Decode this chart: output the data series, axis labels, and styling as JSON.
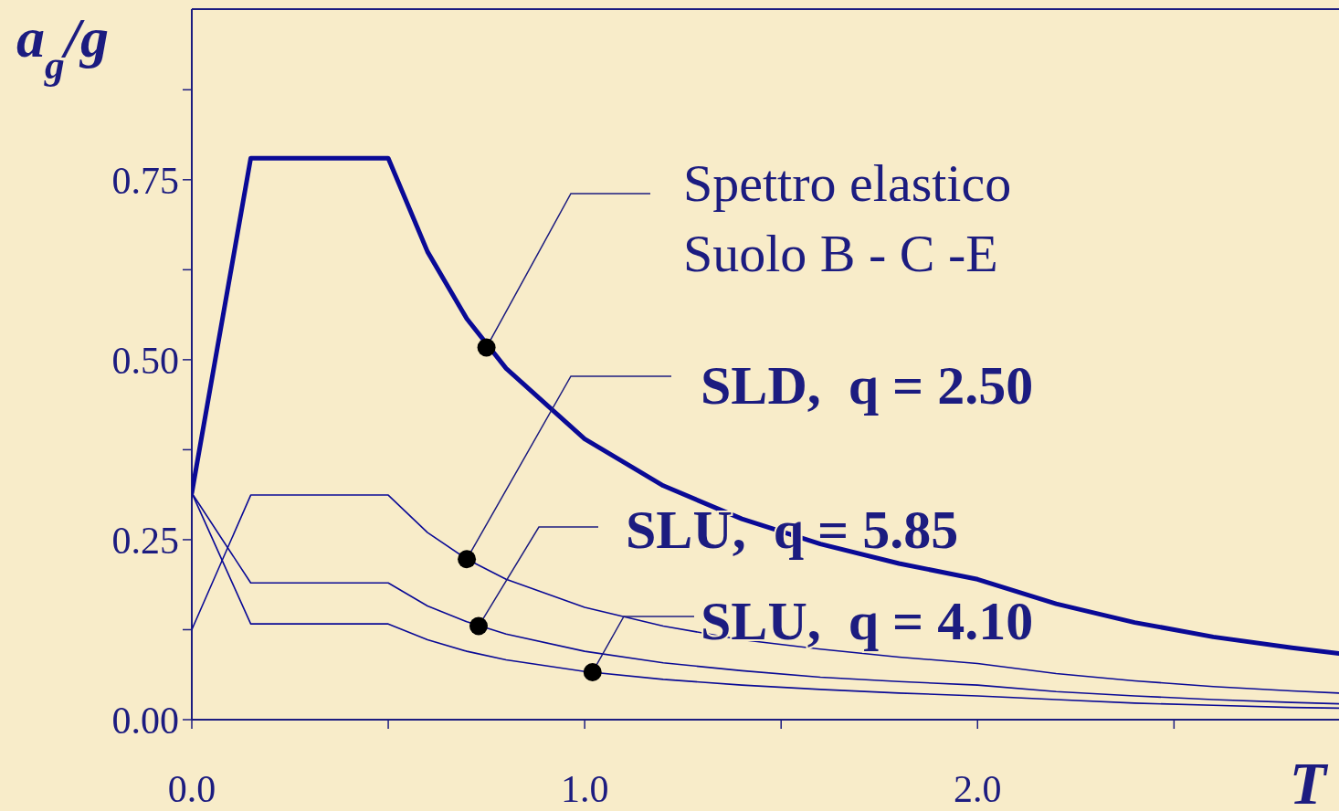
{
  "chart_data": {
    "type": "line",
    "xlabel": "T",
    "ylabel": "a$_{g}$/g",
    "xlim": [
      0,
      2.92
    ],
    "ylim": [
      0,
      0.987
    ],
    "xticks": [
      {
        "value": 0,
        "label": "0.0"
      },
      {
        "value": 0.5,
        "label": null
      },
      {
        "value": 1,
        "label": "1.0"
      },
      {
        "value": 1.5,
        "label": null
      },
      {
        "value": 2,
        "label": "2.0"
      },
      {
        "value": 2.5,
        "label": null
      }
    ],
    "yticks": [
      {
        "value": 0,
        "label": "0.00"
      },
      {
        "value": 0.125,
        "label": null
      },
      0.25,
      {
        "value": 0.375,
        "label": null
      },
      {
        "value": 0.5,
        "label": "0.50"
      },
      {
        "value": 0.625,
        "label": null
      },
      0.75,
      {
        "value": 0.875,
        "label": null
      }
    ],
    "x": [
      0,
      0.15,
      0.5,
      0.6,
      0.7,
      0.8,
      1.0,
      1.2,
      1.4,
      1.6,
      1.8,
      2.0,
      2.2,
      2.4,
      2.6,
      2.8,
      2.92
    ],
    "series": [
      {
        "color": "#0a0a96",
        "values": [
          0.315,
          0.78,
          0.78,
          0.65,
          0.557,
          0.488,
          0.39,
          0.325,
          0.279,
          0.244,
          0.217,
          0.195,
          0.161,
          0.135,
          0.115,
          0.1,
          0.092
        ]
      },
      {
        "color": "#0a0a96",
        "values": [
          0.125,
          0.312,
          0.312,
          0.26,
          0.223,
          0.195,
          0.156,
          0.13,
          0.111,
          0.098,
          0.087,
          0.078,
          0.064,
          0.054,
          0.046,
          0.04,
          0.037
        ]
      },
      {
        "color": "#0a0a96",
        "values": [
          0.315,
          0.19,
          0.19,
          0.158,
          0.136,
          0.119,
          0.095,
          0.079,
          0.068,
          0.059,
          0.053,
          0.048,
          0.039,
          0.033,
          0.028,
          0.024,
          0.022
        ]
      },
      {
        "color": "#0a0a96",
        "values": [
          0.315,
          0.133,
          0.133,
          0.111,
          0.095,
          0.083,
          0.067,
          0.056,
          0.048,
          0.042,
          0.037,
          0.033,
          0.028,
          0.023,
          0.02,
          0.017,
          0.016
        ]
      }
    ],
    "annotations": [
      {
        "text": "Spettro elastico\nSuolo B - C -E",
        "x": 0.75,
        "y": 0.517
      },
      {
        "text": "SLD,  q = 2.50",
        "x": 0.7,
        "y": 0.223
      },
      {
        "text": "SLU,  q = 5.85",
        "x": 0.73,
        "y": 0.13
      },
      {
        "text": "SLU,  q = 4.10",
        "x": 1.02,
        "y": 0.066
      }
    ]
  }
}
